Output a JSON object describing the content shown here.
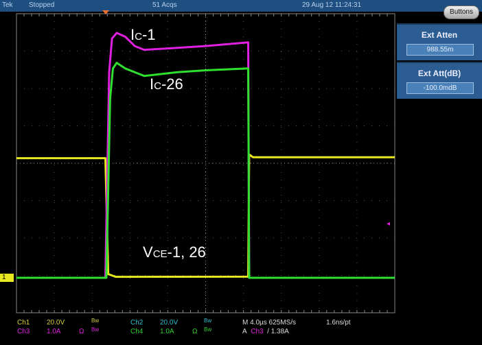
{
  "status_bar": {
    "brand": "Tek",
    "state": "Stopped",
    "acqs": "51 Acqs",
    "datetime": "29 Aug 12 11:24:31",
    "buttons_label": "Buttons"
  },
  "side_panel": [
    {
      "title": "Ext Atten",
      "value": "988.55m"
    },
    {
      "title": "Ext Att(dB)",
      "value": "-100.0mdB"
    }
  ],
  "annotations": {
    "ic1": {
      "main": "I",
      "sub": "C",
      "rest": "-1"
    },
    "ic26": {
      "main": "I",
      "sub": "C",
      "rest": "-26"
    },
    "vce": {
      "main": "V",
      "sub": "CE",
      "rest": "-1, 26"
    }
  },
  "readouts": {
    "ch1": {
      "name": "Ch1",
      "scale": "20.0V",
      "bw": "Bw",
      "color": "#d8d040"
    },
    "ch2": {
      "name": "Ch2",
      "scale": "20.0V",
      "bw": "Bw",
      "color": "#30c0d0"
    },
    "ch3": {
      "name": "Ch3",
      "scale": "1.0A",
      "ohm": "Ω",
      "bw": "Bw",
      "color": "#e020e0"
    },
    "ch4": {
      "name": "Ch4",
      "scale": "1.0A",
      "ohm": "Ω",
      "bw": "Bw",
      "color": "#30d030"
    },
    "timebase": "M 4.0µs 625MS/s",
    "resolution": "1.6ns/pt",
    "trigger": {
      "prefix": "A",
      "source": "Ch3",
      "slope": "/",
      "level": "1.38A"
    },
    "ch1_marker": "1"
  },
  "chart_data": {
    "type": "line",
    "x_unit": "µs",
    "x_per_div": 4,
    "xlim": [
      -20,
      20
    ],
    "divisions": [
      10,
      8
    ],
    "grid": true,
    "series": [
      {
        "channel": "Ch1",
        "color": "#e8e820",
        "scale_per_div": 20,
        "points": [
          [
            -20,
            64
          ],
          [
            -10.6,
            64
          ],
          [
            -10.3,
            2
          ],
          [
            -9.5,
            0.5
          ],
          [
            4.5,
            0.6
          ],
          [
            4.6,
            66
          ],
          [
            5,
            64.5
          ],
          [
            20,
            64.5
          ]
        ]
      },
      {
        "channel": "Ch3",
        "color": "#e020e0",
        "scale_per_div": 1,
        "points": [
          [
            -20,
            0
          ],
          [
            -10.6,
            0
          ],
          [
            -10.2,
            5.5
          ],
          [
            -9.9,
            6.4
          ],
          [
            -9.4,
            6.55
          ],
          [
            -8.5,
            6.45
          ],
          [
            -7.5,
            6.2
          ],
          [
            -6.5,
            6.1
          ],
          [
            -3,
            6.15
          ],
          [
            0,
            6.2
          ],
          [
            4.5,
            6.3
          ],
          [
            4.6,
            0
          ],
          [
            20,
            0
          ]
        ]
      },
      {
        "channel": "Ch4",
        "color": "#30e030",
        "scale_per_div": 1,
        "points": [
          [
            -20,
            0
          ],
          [
            -10.5,
            0
          ],
          [
            -10.1,
            4.8
          ],
          [
            -9.8,
            5.6
          ],
          [
            -9.4,
            5.75
          ],
          [
            -8.5,
            5.6
          ],
          [
            -7,
            5.45
          ],
          [
            -6.5,
            5.4
          ],
          [
            -3,
            5.5
          ],
          [
            0,
            5.55
          ],
          [
            4.5,
            5.6
          ],
          [
            4.6,
            0
          ],
          [
            20,
            0
          ]
        ]
      }
    ]
  }
}
